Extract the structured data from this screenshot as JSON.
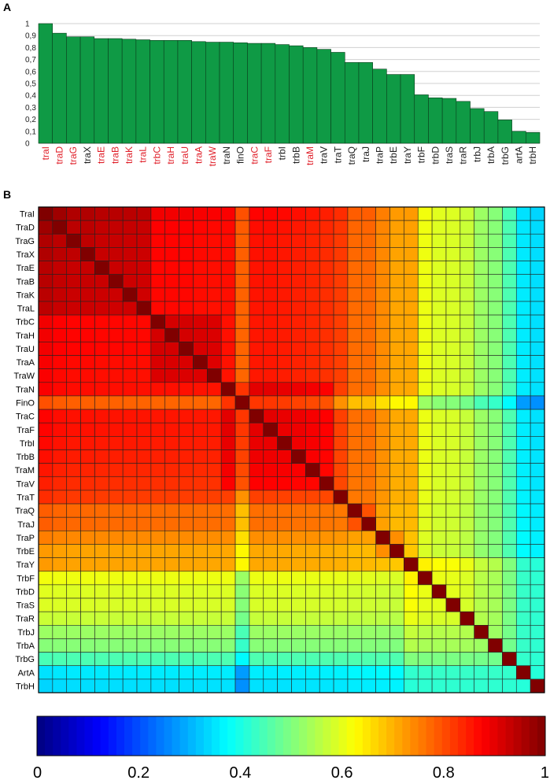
{
  "chart_data": [
    {
      "type": "bar",
      "panel_label": "A",
      "categories": [
        "traI",
        "traD",
        "traG",
        "traX",
        "traE",
        "traB",
        "traK",
        "traL",
        "trbC",
        "traH",
        "traU",
        "traA",
        "traW",
        "traN",
        "finO",
        "traC",
        "traF",
        "trbI",
        "trbB",
        "traM",
        "traV",
        "traT",
        "traQ",
        "traJ",
        "traP",
        "trbE",
        "traY",
        "trbF",
        "trbD",
        "traS",
        "traR",
        "trbJ",
        "trbA",
        "trbG",
        "artA",
        "trbH"
      ],
      "highlighted": [
        "traI",
        "traD",
        "traG",
        "traE",
        "traB",
        "traK",
        "traL",
        "trbC",
        "traH",
        "traU",
        "traA",
        "traW",
        "traC",
        "traF",
        "traM"
      ],
      "values": [
        1.0,
        0.92,
        0.89,
        0.89,
        0.875,
        0.875,
        0.87,
        0.865,
        0.86,
        0.86,
        0.86,
        0.85,
        0.845,
        0.845,
        0.84,
        0.835,
        0.835,
        0.825,
        0.815,
        0.8,
        0.785,
        0.76,
        0.675,
        0.675,
        0.62,
        0.575,
        0.575,
        0.405,
        0.38,
        0.375,
        0.35,
        0.29,
        0.265,
        0.195,
        0.1,
        0.09
      ],
      "ylim": [
        0,
        1
      ],
      "yticks": [
        "0",
        "0,1",
        "0,2",
        "0,3",
        "0,4",
        "0,5",
        "0,6",
        "0,7",
        "0,8",
        "0,9",
        "1"
      ],
      "bar_color": "#0f9a45",
      "highlight_color": "#e0202a",
      "grid": true
    },
    {
      "type": "heatmap",
      "panel_label": "B",
      "rows": [
        "TraI",
        "TraD",
        "TraG",
        "TraX",
        "TraE",
        "TraB",
        "TraK",
        "TraL",
        "TrbC",
        "TraH",
        "TraU",
        "TraA",
        "TraW",
        "TraN",
        "FinO",
        "TraC",
        "TraF",
        "TrbI",
        "TrbB",
        "TraM",
        "TraV",
        "TraT",
        "TraQ",
        "TraJ",
        "TraP",
        "TrbE",
        "TraY",
        "TrbF",
        "TrbD",
        "TraS",
        "TraR",
        "TrbJ",
        "TrbA",
        "TrbG",
        "ArtA",
        "TrbH"
      ],
      "colorbar": {
        "min": 0,
        "max": 1,
        "ticks": [
          "0",
          "0.2",
          "0.4",
          "0.6",
          "0.8",
          "1"
        ],
        "colormap": "jet"
      }
    }
  ]
}
